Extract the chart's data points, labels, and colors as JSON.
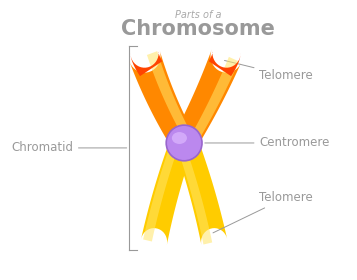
{
  "title_top": "Parts of a",
  "title_main": "Chromosome",
  "label_telomere_top": "Telomere",
  "label_centromere": "Centromere",
  "label_telomere_bot": "Telomere",
  "label_chromatid": "Chromatid",
  "bg_color": "#ffffff",
  "text_color_light": "#aaaaaa",
  "text_color": "#999999",
  "arm_orange": "#FF8800",
  "arm_yellow": "#FFCC00",
  "arm_red": "#FF4400",
  "arm_lightyellow": "#FFE566",
  "centromere_color": "#BB88EE",
  "centromere_hl": "#DDB8FF",
  "label_color": "#999999"
}
